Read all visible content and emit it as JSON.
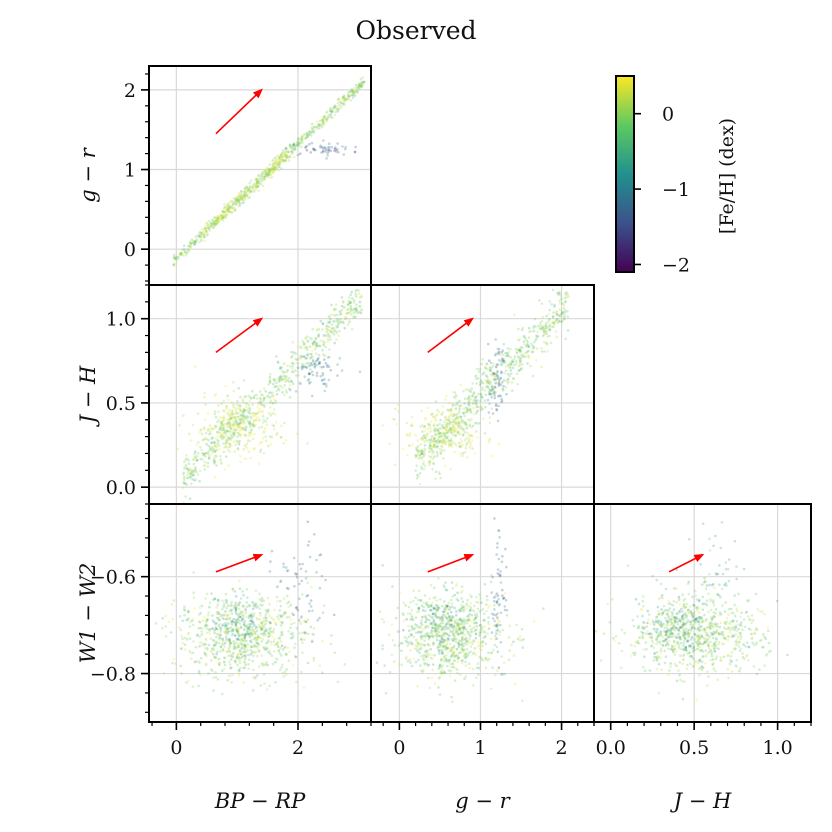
{
  "chart_data": {
    "type": "scatter",
    "title": "Observed",
    "variables": [
      "BP − RP",
      "g − r",
      "J − H",
      "W1 − W2"
    ],
    "colorbar": {
      "label": "[Fe/H] (dex)",
      "range": [
        -2.1,
        0.5
      ],
      "ticks": [
        0,
        -1,
        -2
      ],
      "tick_labels": [
        "0",
        "−1",
        "−2"
      ],
      "colormap": [
        "#440154",
        "#3b528b",
        "#21918c",
        "#5ec962",
        "#fde725"
      ]
    },
    "arrow_color": "#ff0000",
    "panels": [
      {
        "id": "bprp-vs-gr",
        "xlabel": "",
        "ylabel": "g − r",
        "xlim": [
          -0.45,
          3.2
        ],
        "ylim": [
          -0.45,
          2.3
        ],
        "xticks": [
          0,
          2
        ],
        "xtick_labels": [],
        "yticks": [
          0,
          1,
          2
        ],
        "ytick_labels": [
          "0",
          "1",
          "2"
        ],
        "arrow": {
          "from": [
            0.65,
            1.45
          ],
          "to": [
            1.4,
            2.0
          ]
        },
        "clusters": [
          {
            "type": "line",
            "x0": -0.05,
            "x1": 3.1,
            "slope": 0.72,
            "intercept": -0.12,
            "scatter": 0.035,
            "feh": 0.0,
            "n": 520
          },
          {
            "type": "line",
            "x0": 0.4,
            "x1": 1.8,
            "slope": 0.72,
            "intercept": -0.12,
            "scatter": 0.05,
            "feh": 0.25,
            "n": 220
          },
          {
            "type": "blob",
            "cx": 2.4,
            "cy": 1.26,
            "sx": 0.25,
            "sy": 0.04,
            "feh": -1.3,
            "n": 55
          }
        ]
      },
      {
        "id": "bprp-vs-jh",
        "xlabel": "",
        "ylabel": "J − H",
        "xlim": [
          -0.45,
          3.2
        ],
        "ylim": [
          -0.1,
          1.2
        ],
        "xticks": [
          0,
          2
        ],
        "xtick_labels": [],
        "yticks": [
          0.0,
          0.5,
          1.0
        ],
        "ytick_labels": [
          "0.0",
          "0.5",
          "1.0"
        ],
        "arrow": {
          "from": [
            0.65,
            0.8
          ],
          "to": [
            1.4,
            1.0
          ]
        },
        "clusters": [
          {
            "type": "line",
            "x0": 0.1,
            "x1": 3.05,
            "slope": 0.36,
            "intercept": 0.02,
            "scatter": 0.06,
            "feh": -0.05,
            "n": 650
          },
          {
            "type": "blob",
            "cx": 1.0,
            "cy": 0.36,
            "sx": 0.35,
            "sy": 0.1,
            "feh": 0.25,
            "n": 260
          },
          {
            "type": "blob",
            "cx": 2.3,
            "cy": 0.68,
            "sx": 0.2,
            "sy": 0.06,
            "feh": -1.1,
            "n": 70
          }
        ]
      },
      {
        "id": "gr-vs-jh",
        "xlabel": "",
        "ylabel": "",
        "xlim": [
          -0.35,
          2.4
        ],
        "ylim": [
          -0.1,
          1.2
        ],
        "xticks": [
          0,
          1,
          2
        ],
        "xtick_labels": [],
        "yticks": [
          0.0,
          0.5,
          1.0
        ],
        "ytick_labels": [],
        "arrow": {
          "from": [
            0.35,
            0.8
          ],
          "to": [
            0.9,
            1.0
          ]
        },
        "clusters": [
          {
            "type": "line",
            "x0": 0.2,
            "x1": 2.1,
            "slope": 0.5,
            "intercept": 0.05,
            "scatter": 0.07,
            "feh": -0.05,
            "n": 620
          },
          {
            "type": "blob",
            "cx": 0.55,
            "cy": 0.33,
            "sx": 0.25,
            "sy": 0.1,
            "feh": 0.25,
            "n": 250
          },
          {
            "type": "blob",
            "cx": 1.2,
            "cy": 0.62,
            "sx": 0.05,
            "sy": 0.1,
            "feh": -1.2,
            "n": 70
          }
        ]
      },
      {
        "id": "bprp-vs-w1w2",
        "xlabel": "BP − RP",
        "ylabel": "W1 − W2",
        "xlim": [
          -0.45,
          3.2
        ],
        "ylim": [
          -0.9,
          -0.45
        ],
        "xticks": [
          0,
          2
        ],
        "xtick_labels": [
          "0",
          "2"
        ],
        "yticks": [
          -0.8,
          -0.6
        ],
        "ytick_labels": [
          "−0.8",
          "−0.6"
        ],
        "arrow": {
          "from": [
            0.65,
            -0.59
          ],
          "to": [
            1.4,
            -0.555
          ]
        },
        "clusters": [
          {
            "type": "blob",
            "cx": 1.1,
            "cy": -0.72,
            "sx": 0.55,
            "sy": 0.045,
            "feh": 0.0,
            "n": 720
          },
          {
            "type": "blob",
            "cx": 0.95,
            "cy": -0.7,
            "sx": 0.3,
            "sy": 0.03,
            "feh": -0.7,
            "n": 140
          },
          {
            "type": "blob",
            "cx": 2.0,
            "cy": -0.63,
            "sx": 0.25,
            "sy": 0.06,
            "feh": -1.2,
            "n": 60
          }
        ]
      },
      {
        "id": "gr-vs-w1w2",
        "xlabel": "g − r",
        "ylabel": "",
        "xlim": [
          -0.35,
          2.4
        ],
        "ylim": [
          -0.9,
          -0.45
        ],
        "xticks": [
          0,
          1,
          2
        ],
        "xtick_labels": [
          "0",
          "1",
          "2"
        ],
        "yticks": [
          -0.8,
          -0.6
        ],
        "ytick_labels": [],
        "arrow": {
          "from": [
            0.35,
            -0.59
          ],
          "to": [
            0.9,
            -0.555
          ]
        },
        "clusters": [
          {
            "type": "blob",
            "cx": 0.62,
            "cy": -0.72,
            "sx": 0.35,
            "sy": 0.045,
            "feh": 0.0,
            "n": 720
          },
          {
            "type": "blob",
            "cx": 0.5,
            "cy": -0.7,
            "sx": 0.2,
            "sy": 0.03,
            "feh": -0.7,
            "n": 140
          },
          {
            "type": "blob",
            "cx": 1.23,
            "cy": -0.64,
            "sx": 0.05,
            "sy": 0.07,
            "feh": -1.2,
            "n": 60
          }
        ]
      },
      {
        "id": "jh-vs-w1w2",
        "xlabel": "J − H",
        "ylabel": "",
        "xlim": [
          -0.1,
          1.2
        ],
        "ylim": [
          -0.9,
          -0.45
        ],
        "xticks": [
          0.0,
          0.5,
          1.0
        ],
        "xtick_labels": [
          "0.0",
          "0.5",
          "1.0"
        ],
        "yticks": [
          -0.8,
          -0.6
        ],
        "ytick_labels": [],
        "arrow": {
          "from": [
            0.35,
            -0.59
          ],
          "to": [
            0.55,
            -0.555
          ]
        },
        "clusters": [
          {
            "type": "blob",
            "cx": 0.5,
            "cy": -0.72,
            "sx": 0.2,
            "sy": 0.04,
            "feh": 0.0,
            "n": 700
          },
          {
            "type": "blob",
            "cx": 0.4,
            "cy": -0.71,
            "sx": 0.12,
            "sy": 0.03,
            "feh": -0.7,
            "n": 140
          },
          {
            "type": "blob",
            "cx": 0.6,
            "cy": -0.6,
            "sx": 0.1,
            "sy": 0.05,
            "feh": -0.4,
            "n": 60
          }
        ]
      }
    ]
  }
}
